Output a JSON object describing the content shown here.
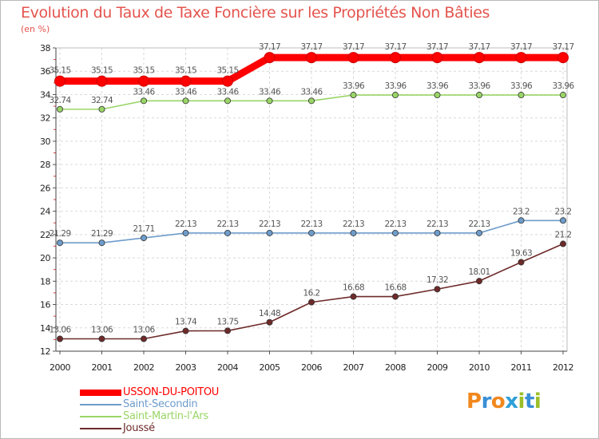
{
  "title": "Evolution du Taux de Taxe Foncière sur les Propriétés Non Bâties",
  "unit_label": "(en %)",
  "brand": {
    "text": "Proxiti",
    "letters": [
      "P",
      "r",
      "o",
      "x",
      "i",
      "t",
      "i"
    ],
    "colors": [
      "#f1881e",
      "#3a8fd6",
      "#f1881e",
      "#2e9fd8",
      "#9bbf29",
      "#3a8fd6",
      "#9bbf29"
    ]
  },
  "chart_data": {
    "type": "line",
    "title": "Evolution du Taux de Taxe Foncière sur les Propriétés Non Bâties",
    "ylabel": "(en %)",
    "xlabel": "",
    "x": [
      "2000",
      "2001",
      "2002",
      "2003",
      "2004",
      "2005",
      "2006",
      "2007",
      "2008",
      "2009",
      "2010",
      "2011",
      "2012"
    ],
    "ylim": [
      12,
      38
    ],
    "yticks": [
      "12",
      "14",
      "16",
      "18",
      "20",
      "22",
      "24",
      "26",
      "28",
      "30",
      "32",
      "34",
      "36",
      "38"
    ],
    "grid": true,
    "legend": "bottom-left",
    "series": [
      {
        "name": "USSON-DU-POITOU",
        "color": "#ff0000",
        "values": [
          35.15,
          35.15,
          35.15,
          35.15,
          35.15,
          37.17,
          37.17,
          37.17,
          37.17,
          37.17,
          37.17,
          37.17,
          37.17
        ],
        "labels": [
          "35.15",
          "35.15",
          "35.15",
          "35.15",
          "35.15",
          "37.17",
          "37.17",
          "37.17",
          "37.17",
          "37.17",
          "37.17",
          "37.17",
          "37.17"
        ]
      },
      {
        "name": "Saint-Secondin",
        "color": "#6e9ccb",
        "values": [
          21.29,
          21.29,
          21.71,
          22.13,
          22.13,
          22.13,
          22.13,
          22.13,
          22.13,
          22.13,
          22.13,
          23.2,
          23.2
        ],
        "labels": [
          "21.29",
          "21.29",
          "21.71",
          "22.13",
          "22.13",
          "22.13",
          "22.13",
          "22.13",
          "22.13",
          "22.13",
          "22.13",
          "23.2",
          "23.2"
        ]
      },
      {
        "name": "Saint-Martin-l'Ars",
        "color": "#9ad567",
        "values": [
          32.74,
          32.74,
          33.46,
          33.46,
          33.46,
          33.46,
          33.46,
          33.96,
          33.96,
          33.96,
          33.96,
          33.96,
          33.96
        ],
        "labels": [
          "32.74",
          "32.74",
          "33.46",
          "33.46",
          "33.46",
          "33.46",
          "33.46",
          "33.96",
          "33.96",
          "33.96",
          "33.96",
          "33.96",
          "33.96"
        ]
      },
      {
        "name": "Joussé",
        "color": "#6e2a2a",
        "values": [
          13.06,
          13.06,
          13.06,
          13.74,
          13.75,
          14.48,
          16.2,
          16.68,
          16.68,
          17.32,
          18.01,
          19.63,
          21.2
        ],
        "labels": [
          "13.06",
          "13.06",
          "13.06",
          "13.74",
          "13.75",
          "14.48",
          "16.2",
          "16.68",
          "16.68",
          "17.32",
          "18.01",
          "19.63",
          "21.2"
        ]
      }
    ]
  }
}
